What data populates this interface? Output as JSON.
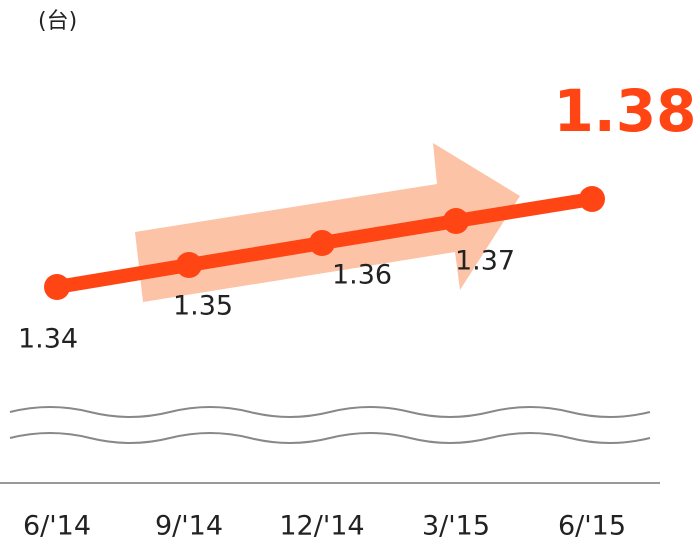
{
  "chart_data": {
    "type": "line",
    "unit_label": "(台)",
    "categories": [
      "6/'14",
      "9/'14",
      "12/'14",
      "3/'15",
      "6/'15"
    ],
    "series": [
      {
        "name": null,
        "color": "#ff4513",
        "values": [
          1.34,
          1.35,
          1.36,
          1.37,
          1.38
        ]
      }
    ]
  }
}
